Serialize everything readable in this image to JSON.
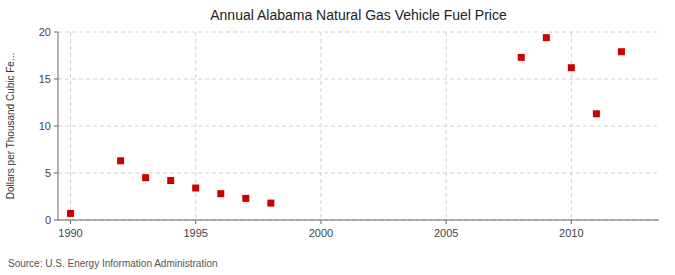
{
  "chart_data": {
    "type": "scatter",
    "title": "Annual Alabama Natural Gas Vehicle Fuel Price",
    "ylabel": "Dollars per Thousand Cubic Fe...",
    "annotations": [
      "Source: U.S. Energy Information Administration"
    ],
    "x": [
      1990,
      1992,
      1993,
      1994,
      1995,
      1996,
      1997,
      1998,
      2008,
      2009,
      2010,
      2011,
      2012
    ],
    "values": [
      0.7,
      6.3,
      4.5,
      4.2,
      3.4,
      2.8,
      2.3,
      1.8,
      17.3,
      19.4,
      16.2,
      11.3,
      17.9
    ],
    "color": "#cc0000",
    "marker": "square",
    "xlim": [
      1989.5,
      2013.5
    ],
    "ylim": [
      0,
      20
    ],
    "xticks": [
      1990,
      1995,
      2000,
      2005,
      2010
    ],
    "yticks": [
      0,
      5,
      10,
      15,
      20
    ],
    "grid": true
  }
}
